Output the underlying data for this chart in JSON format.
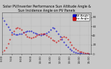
{
  "title": "Solar PV/Inverter Performance Sun Altitude Angle & Sun Incidence Angle on PV Panels",
  "legend_labels": [
    "Alt Angle",
    "Inc Angle"
  ],
  "legend_colors": [
    "#0000cc",
    "#cc0000"
  ],
  "bg_color": "#c8c8c8",
  "plot_bg_color": "#c8c8c8",
  "grid_color": "#aaaaaa",
  "ylim": [
    0,
    90
  ],
  "xlim": [
    0,
    46
  ],
  "ytick_positions": [
    0,
    20,
    40,
    60,
    80
  ],
  "ytick_labels": [
    "0",
    "20",
    "40",
    "60",
    "80"
  ],
  "blue_x": [
    0,
    1,
    2,
    3,
    4,
    5,
    6,
    7,
    8,
    9,
    10,
    11,
    12,
    13,
    14,
    15,
    16,
    17,
    18,
    19,
    20,
    21,
    22,
    23,
    24,
    25,
    26,
    27,
    28,
    29,
    30,
    31,
    32,
    33,
    34,
    35,
    36,
    37,
    38,
    39,
    40,
    41,
    42,
    43,
    44,
    45
  ],
  "blue_y": [
    78,
    72,
    65,
    58,
    52,
    47,
    44,
    42,
    42,
    43,
    44,
    46,
    48,
    50,
    50,
    49,
    47,
    45,
    43,
    42,
    41,
    42,
    43,
    45,
    48,
    52,
    57,
    55,
    50,
    44,
    38,
    32,
    26,
    20,
    15,
    11,
    8,
    5,
    3,
    2,
    1,
    1,
    0,
    0,
    0,
    0
  ],
  "red_x": [
    0,
    1,
    2,
    3,
    4,
    5,
    6,
    7,
    8,
    9,
    10,
    11,
    12,
    13,
    14,
    15,
    16,
    17,
    18,
    19,
    20,
    21,
    22,
    23,
    24,
    25,
    26,
    27,
    28,
    29,
    30,
    31,
    32,
    33,
    34,
    35,
    36,
    37,
    38,
    39,
    40,
    41,
    42,
    43,
    44,
    45
  ],
  "red_y": [
    5,
    8,
    14,
    22,
    32,
    42,
    50,
    55,
    57,
    56,
    52,
    47,
    42,
    38,
    36,
    35,
    36,
    38,
    40,
    42,
    43,
    44,
    43,
    41,
    38,
    34,
    30,
    28,
    26,
    28,
    32,
    36,
    38,
    36,
    32,
    26,
    20,
    14,
    10,
    7,
    5,
    4,
    3,
    2,
    1,
    0
  ],
  "title_fontsize": 3.5,
  "tick_fontsize": 3.0,
  "legend_fontsize": 3.0,
  "marker_size": 0.8,
  "xtick_positions": [
    0,
    5,
    10,
    15,
    20,
    25,
    30,
    35,
    40,
    45
  ],
  "xtick_labels": [
    "6:00",
    "7:00",
    "8:00",
    "9:00",
    "10:00",
    "11:00",
    "12:00",
    "13:00",
    "14:00",
    "15:00"
  ]
}
